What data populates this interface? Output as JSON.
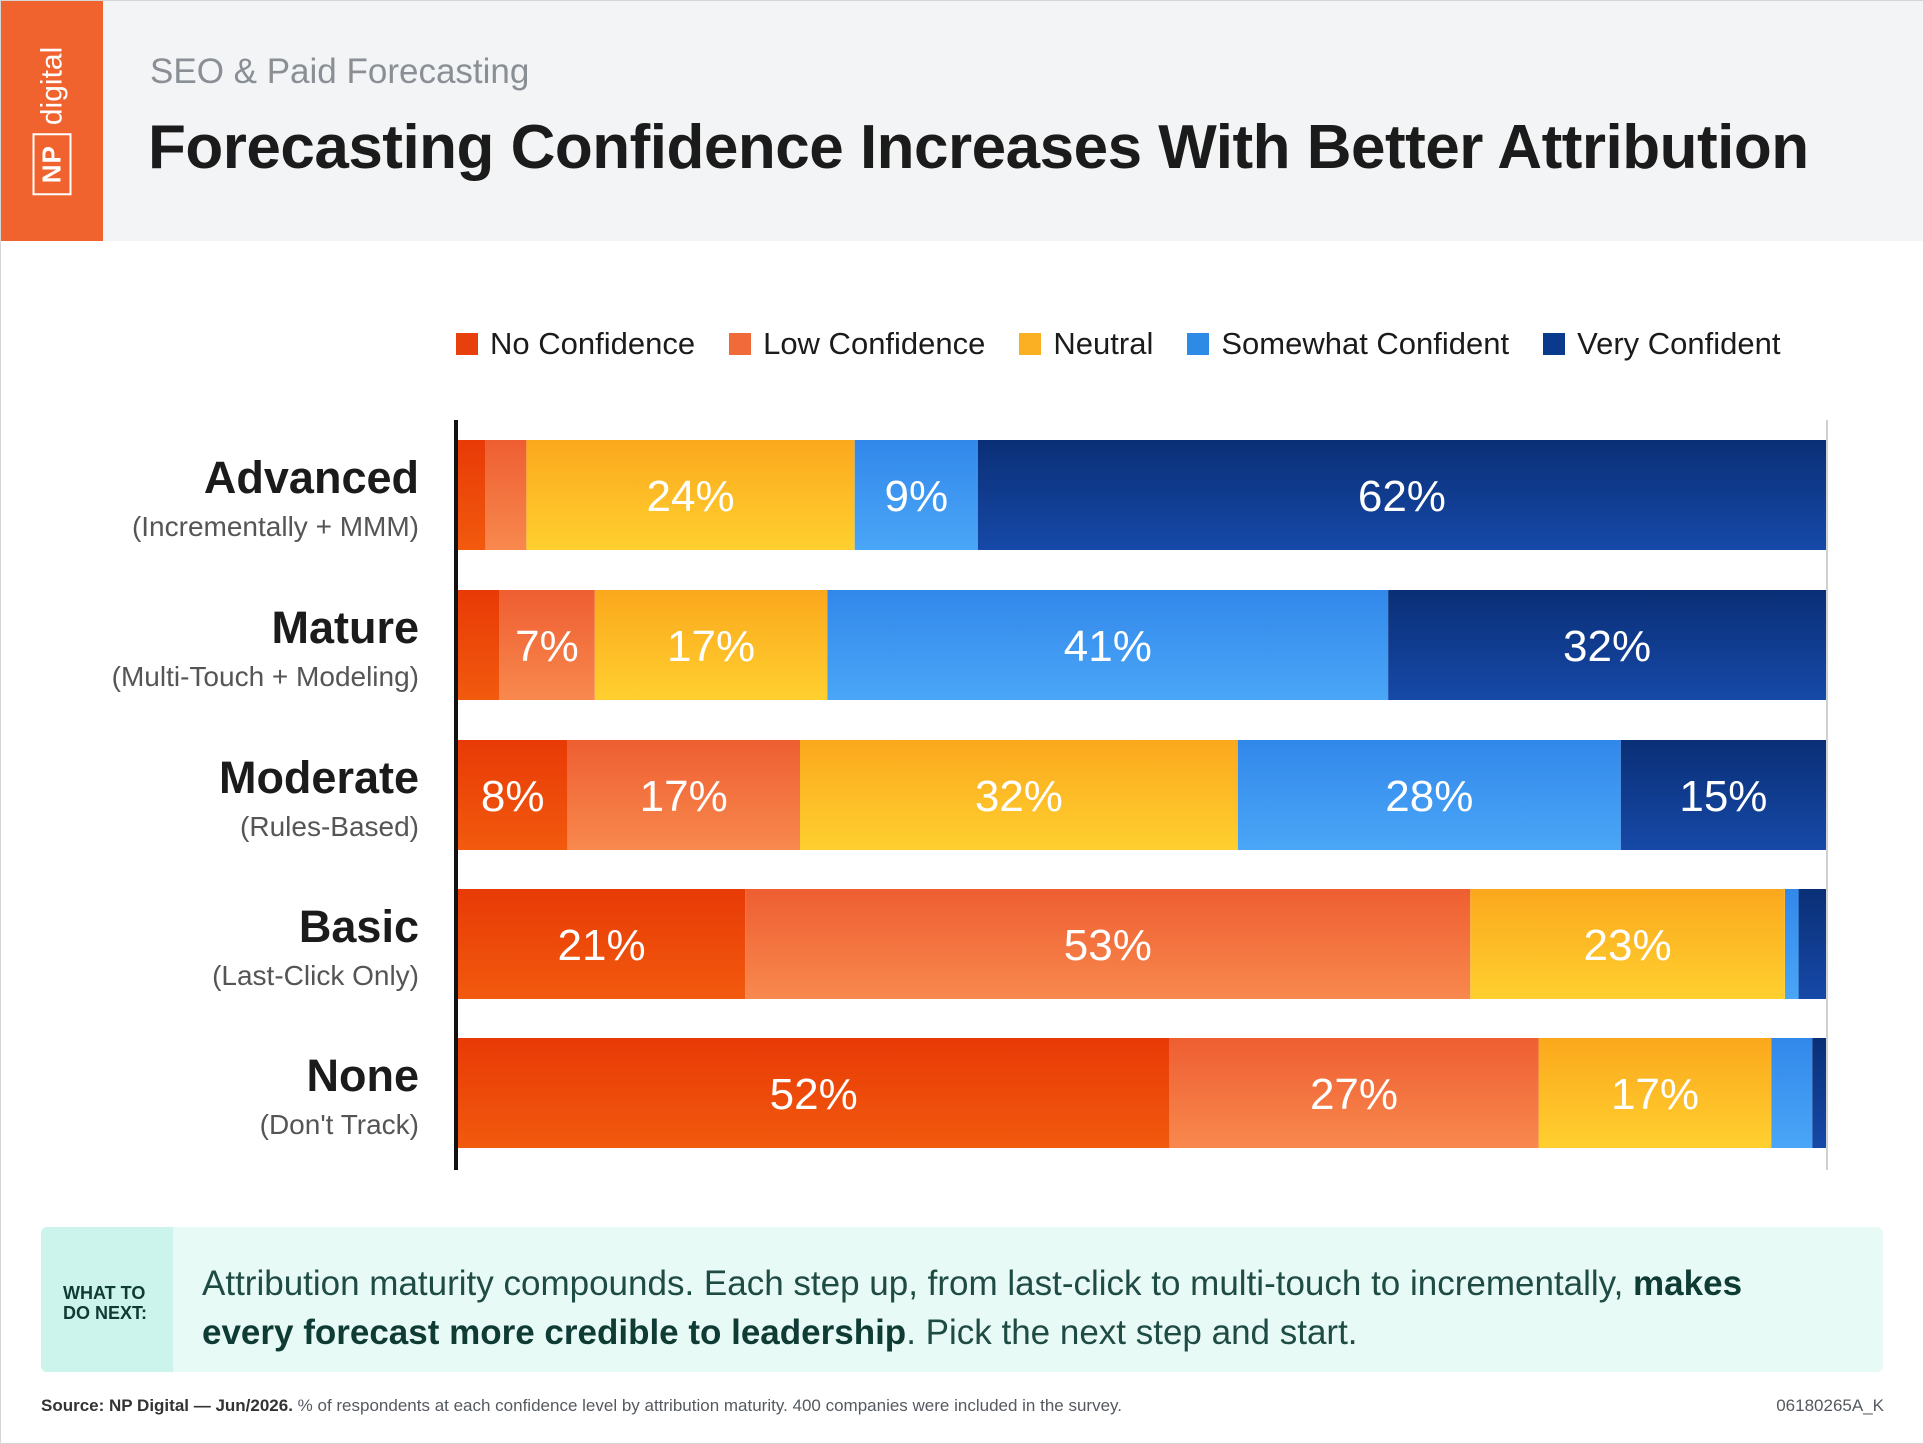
{
  "header": {
    "logo_np": "NP",
    "logo_digital": "digital",
    "subtitle": "SEO & Paid Forecasting",
    "title": "Forecasting Confidence Increases With Better Attribution"
  },
  "legend": [
    {
      "label": "No Confidence",
      "color": "#e8400d"
    },
    {
      "label": "Low Confidence",
      "color": "#f16a3a"
    },
    {
      "label": "Neutral",
      "color": "#fbb024"
    },
    {
      "label": "Somewhat Confident",
      "color": "#2d8be6"
    },
    {
      "label": "Very Confident",
      "color": "#0b3a8c"
    }
  ],
  "chart_data": {
    "type": "bar",
    "orientation": "horizontal",
    "stacked": true,
    "unit": "%",
    "categories": [
      {
        "label": "Advanced",
        "sublabel": "(Incrementally + MMM)"
      },
      {
        "label": "Mature",
        "sublabel": "(Multi-Touch + Modeling)"
      },
      {
        "label": "Moderate",
        "sublabel": "(Rules-Based)"
      },
      {
        "label": "Basic",
        "sublabel": "(Last-Click Only)"
      },
      {
        "label": "None",
        "sublabel": "(Don't Track)"
      }
    ],
    "series": [
      {
        "name": "No Confidence",
        "values": [
          2,
          3,
          8,
          21,
          52
        ]
      },
      {
        "name": "Low Confidence",
        "values": [
          3,
          7,
          17,
          53,
          27
        ]
      },
      {
        "name": "Neutral",
        "values": [
          24,
          17,
          32,
          23,
          17
        ]
      },
      {
        "name": "Somewhat Confident",
        "values": [
          9,
          41,
          28,
          1,
          3
        ]
      },
      {
        "name": "Very Confident",
        "values": [
          62,
          32,
          15,
          2,
          1
        ]
      }
    ],
    "data_labels": [
      [
        null,
        null,
        "24%",
        "9%",
        "62%"
      ],
      [
        null,
        "7%",
        "17%",
        "41%",
        "32%"
      ],
      [
        "8%",
        "17%",
        "32%",
        "28%",
        "15%"
      ],
      [
        "21%",
        "53%",
        "23%",
        null,
        null
      ],
      [
        "52%",
        "27%",
        "17%",
        null,
        null
      ]
    ],
    "xlim": [
      0,
      100
    ],
    "legend_position": "top",
    "grid": false
  },
  "note": {
    "tag_line1": "WHAT TO",
    "tag_line2": "DO NEXT:",
    "text_part1": "Attribution maturity compounds. Each step up, from last-click to multi-touch to incrementally, ",
    "text_bold": "makes every forecast more credible to leadership",
    "text_part2": ". Pick the next step and start."
  },
  "footer": {
    "source_bold": "Source: NP Digital — Jun/2026.",
    "source_rest": " % of respondents at each confidence level by attribution maturity. 400 companies were included in the survey.",
    "code": "06180265A_K"
  }
}
